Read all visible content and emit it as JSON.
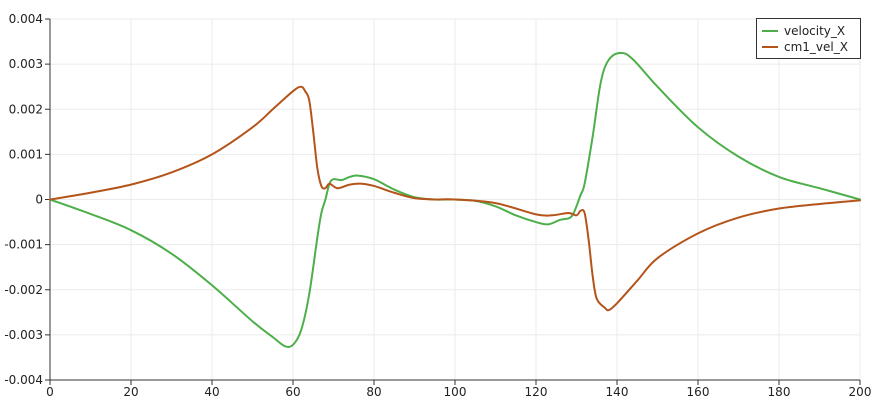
{
  "chart_data": {
    "type": "line",
    "title": "",
    "xlabel": "",
    "ylabel": "",
    "xlim": [
      0,
      200
    ],
    "ylim": [
      -0.004,
      0.004
    ],
    "x_ticks": [
      0,
      20,
      40,
      60,
      80,
      100,
      120,
      140,
      160,
      180,
      200
    ],
    "x_tick_labels": [
      "0",
      "20",
      "40",
      "60",
      "80",
      "100",
      "120",
      "140",
      "160",
      "180",
      "200"
    ],
    "y_ticks": [
      0.004,
      0.003,
      0.002,
      0.001,
      0,
      -0.001,
      -0.002,
      -0.003,
      -0.004
    ],
    "y_tick_labels": [
      "0.004",
      "0.003",
      "0.002",
      "0.001",
      "0",
      "-0.001",
      "-0.002",
      "-0.003",
      "-0.004"
    ],
    "grid": true,
    "legend_position": "top-right",
    "series": [
      {
        "name": "velocity_X",
        "color": "#4daf4a",
        "points": [
          [
            0,
            0
          ],
          [
            10,
            -0.00032
          ],
          [
            20,
            -0.00068
          ],
          [
            30,
            -0.0012
          ],
          [
            40,
            -0.0019
          ],
          [
            50,
            -0.0027
          ],
          [
            55,
            -0.00305
          ],
          [
            58,
            -0.00325
          ],
          [
            60,
            -0.00322
          ],
          [
            62,
            -0.0029
          ],
          [
            64,
            -0.0021
          ],
          [
            66,
            -0.00085
          ],
          [
            67,
            -0.0003
          ],
          [
            68,
            0.0
          ],
          [
            69,
            0.00035
          ],
          [
            70,
            0.00045
          ],
          [
            72,
            0.00043
          ],
          [
            74,
            0.0005
          ],
          [
            76,
            0.00053
          ],
          [
            80,
            0.00045
          ],
          [
            85,
            0.00022
          ],
          [
            90,
            5e-05
          ],
          [
            95,
            0.0
          ],
          [
            100,
            0.0
          ],
          [
            105,
            -3e-05
          ],
          [
            110,
            -0.00015
          ],
          [
            115,
            -0.00035
          ],
          [
            120,
            -0.0005
          ],
          [
            123,
            -0.00055
          ],
          [
            126,
            -0.00045
          ],
          [
            128,
            -0.00042
          ],
          [
            129,
            -0.00035
          ],
          [
            130,
            -0.00015
          ],
          [
            131,
            0.0001
          ],
          [
            132,
            0.00035
          ],
          [
            134,
            0.0014
          ],
          [
            136,
            0.0026
          ],
          [
            138,
            0.0031
          ],
          [
            141,
            0.00325
          ],
          [
            144,
            0.0031
          ],
          [
            150,
            0.0025
          ],
          [
            160,
            0.0016
          ],
          [
            170,
            0.00095
          ],
          [
            180,
            0.0005
          ],
          [
            190,
            0.00025
          ],
          [
            200,
            0.0
          ]
        ]
      },
      {
        "name": "cm1_vel_X",
        "color": "#b5541a",
        "points": [
          [
            0,
            0
          ],
          [
            10,
            0.00015
          ],
          [
            20,
            0.00033
          ],
          [
            30,
            0.0006
          ],
          [
            40,
            0.001
          ],
          [
            50,
            0.0016
          ],
          [
            55,
            0.002
          ],
          [
            60,
            0.0024
          ],
          [
            62,
            0.0025
          ],
          [
            63,
            0.0024
          ],
          [
            64,
            0.0022
          ],
          [
            65,
            0.0015
          ],
          [
            66,
            0.0007
          ],
          [
            67,
            0.0003
          ],
          [
            68,
            0.00025
          ],
          [
            69,
            0.00035
          ],
          [
            71,
            0.00025
          ],
          [
            74,
            0.00033
          ],
          [
            77,
            0.00035
          ],
          [
            80,
            0.0003
          ],
          [
            85,
            0.00015
          ],
          [
            90,
            3e-05
          ],
          [
            95,
            0.0
          ],
          [
            100,
            0.0
          ],
          [
            110,
            -8e-05
          ],
          [
            120,
            -0.00033
          ],
          [
            124,
            -0.00035
          ],
          [
            128,
            -0.0003
          ],
          [
            130,
            -0.00035
          ],
          [
            131,
            -0.00025
          ],
          [
            132,
            -0.0003
          ],
          [
            133,
            -0.0009
          ],
          [
            134,
            -0.0017
          ],
          [
            135,
            -0.0022
          ],
          [
            137,
            -0.0024
          ],
          [
            138,
            -0.00245
          ],
          [
            140,
            -0.0023
          ],
          [
            145,
            -0.0018
          ],
          [
            150,
            -0.0013
          ],
          [
            160,
            -0.00075
          ],
          [
            170,
            -0.0004
          ],
          [
            180,
            -0.0002
          ],
          [
            190,
            -0.0001
          ],
          [
            200,
            -2e-05
          ]
        ]
      }
    ]
  }
}
